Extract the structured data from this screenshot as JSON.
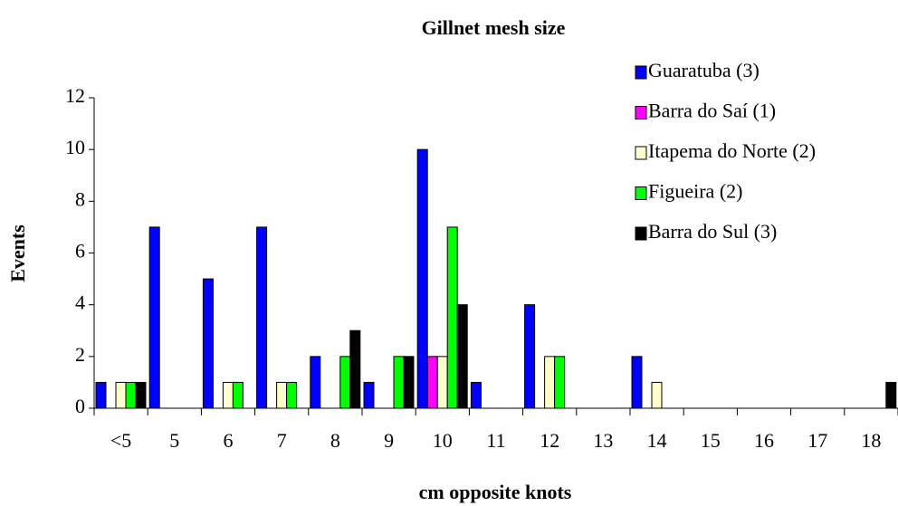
{
  "chart_data": {
    "type": "bar",
    "title": "Gillnet mesh size",
    "x_label": "cm opposite knots",
    "y_label": "Events",
    "categories": [
      "<5",
      "5",
      "6",
      "7",
      "8",
      "9",
      "10",
      "11",
      "12",
      "13",
      "14",
      "15",
      "16",
      "17",
      "18"
    ],
    "series": [
      {
        "name": "Guaratuba (3)",
        "color": "#0000ff",
        "values": [
          1,
          7,
          5,
          7,
          2,
          1,
          10,
          1,
          4,
          0,
          2,
          0,
          0,
          0,
          0
        ]
      },
      {
        "name": "Barra do Saí (1)",
        "color": "#ff00ff",
        "values": [
          0,
          0,
          0,
          0,
          0,
          0,
          2,
          0,
          0,
          0,
          0,
          0,
          0,
          0,
          0
        ]
      },
      {
        "name": "Itapema do Norte (2)",
        "color": "#ffffcc",
        "values": [
          1,
          0,
          1,
          1,
          0,
          0,
          2,
          0,
          2,
          0,
          1,
          0,
          0,
          0,
          0
        ]
      },
      {
        "name": "Figueira (2)",
        "color": "#00ff00",
        "values": [
          1,
          0,
          1,
          1,
          2,
          2,
          7,
          0,
          2,
          0,
          0,
          0,
          0,
          0,
          0
        ]
      },
      {
        "name": "Barra do Sul (3)",
        "color": "#000000",
        "values": [
          1,
          0,
          0,
          0,
          3,
          2,
          4,
          0,
          0,
          0,
          0,
          0,
          0,
          0,
          1
        ]
      }
    ],
    "ylim": [
      0,
      12
    ],
    "yticks": [
      0,
      2,
      4,
      6,
      8,
      10,
      12
    ],
    "legend": "top-right",
    "grid": false
  }
}
